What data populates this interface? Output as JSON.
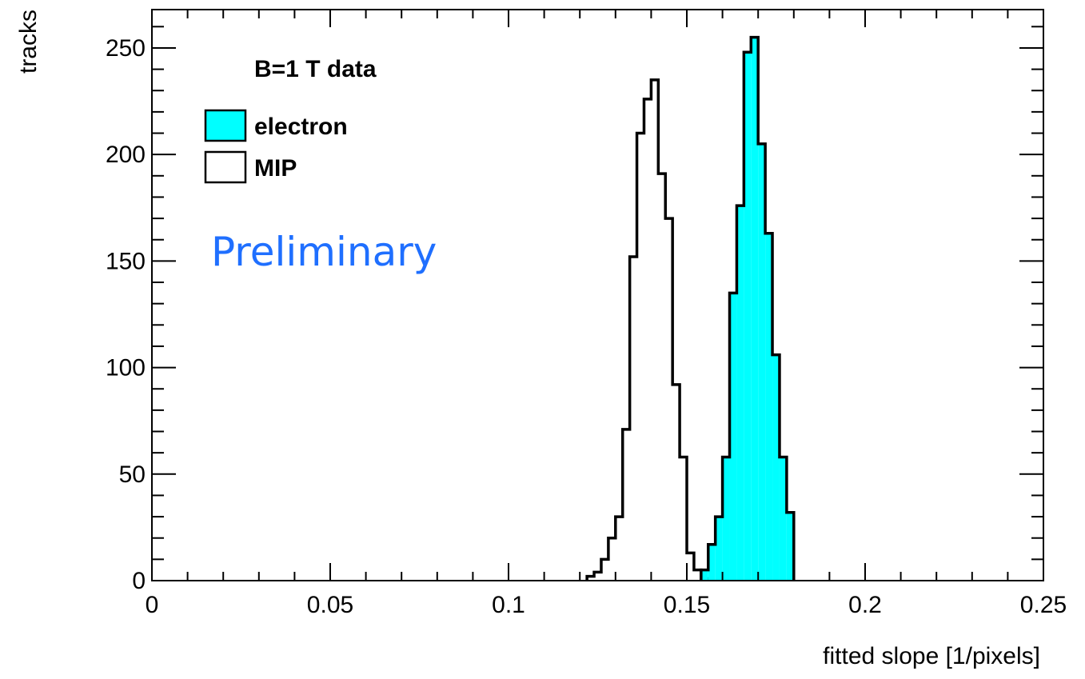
{
  "chart_data": {
    "type": "histogram",
    "title": "",
    "xlabel": "fitted slope [1/pixels]",
    "ylabel": "tracks",
    "xlim": [
      0,
      0.25
    ],
    "ylim": [
      0,
      268
    ],
    "grid": false,
    "x_ticks": [
      "0",
      "0.05",
      "0.1",
      "0.15",
      "0.2",
      "0.25"
    ],
    "y_ticks": [
      "0",
      "50",
      "100",
      "150",
      "200",
      "250"
    ],
    "legend": {
      "placement": "top-left",
      "title": "B=1 T data",
      "entries": [
        {
          "label": "electron",
          "fill": "#00ffff"
        },
        {
          "label": "MIP",
          "fill": "none"
        }
      ]
    },
    "annotation": "Preliminary",
    "series": [
      {
        "name": "MIP",
        "fill": "none",
        "stroke": "#000000",
        "bin_edges": [
          0.122,
          0.124,
          0.126,
          0.128,
          0.13,
          0.132,
          0.134,
          0.136,
          0.138,
          0.14,
          0.142,
          0.144,
          0.146,
          0.148,
          0.15,
          0.152,
          0.154,
          0.156
        ],
        "values": [
          2,
          4,
          10,
          20,
          30,
          71,
          152,
          210,
          226,
          235,
          191,
          170,
          92,
          58,
          13,
          5,
          1
        ]
      },
      {
        "name": "electron",
        "fill": "#00ffff",
        "stroke": "#000000",
        "bin_edges": [
          0.154,
          0.156,
          0.158,
          0.16,
          0.162,
          0.164,
          0.166,
          0.168,
          0.17,
          0.172,
          0.174,
          0.176,
          0.178,
          0.18
        ],
        "values": [
          5,
          17,
          30,
          58,
          135,
          176,
          248,
          255,
          205,
          163,
          106,
          58,
          32
        ]
      }
    ]
  }
}
